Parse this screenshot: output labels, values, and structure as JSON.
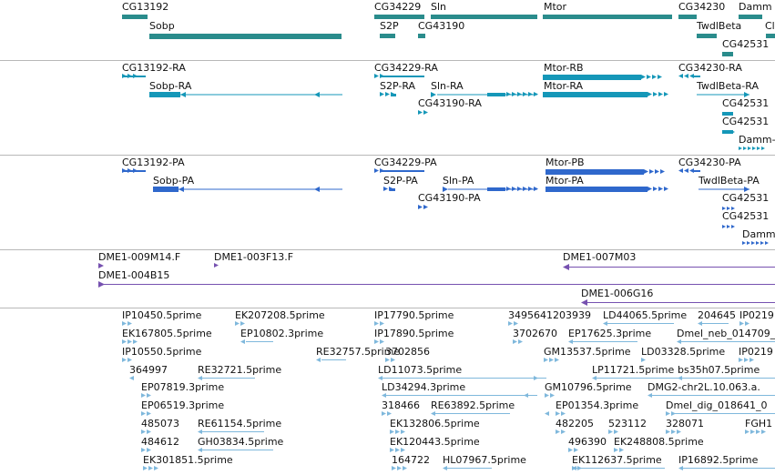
{
  "colors": {
    "gene": "#2a8c8c",
    "transcript_ra": "#1597b8",
    "transcript_pa": "#2f68cc",
    "bac": "#7651b0",
    "est": "#7fb8dc",
    "separator": "#b8b8b8",
    "text": "#111111"
  },
  "tracks": [
    {
      "id": "genes",
      "color": "gene",
      "labels": [
        {
          "text": "CG13192"
        },
        {
          "text": "Sobp"
        },
        {
          "text": "CG34229"
        },
        {
          "text": "Sln"
        },
        {
          "text": "S2P"
        },
        {
          "text": "CG43190"
        },
        {
          "text": "Mtor"
        },
        {
          "text": "CG34230"
        },
        {
          "text": "Damm"
        },
        {
          "text": "Cl"
        },
        {
          "text": "TwdlBeta"
        },
        {
          "text": "CG42531"
        }
      ]
    },
    {
      "id": "transcripts-ra",
      "color": "transcript_ra",
      "labels": [
        {
          "text": "CG13192-RA"
        },
        {
          "text": "Sobp-RA"
        },
        {
          "text": "CG34229-RA"
        },
        {
          "text": "S2P-RA"
        },
        {
          "text": "Sln-RA"
        },
        {
          "text": "CG43190-RA"
        },
        {
          "text": "Mtor-RB"
        },
        {
          "text": "Mtor-RA"
        },
        {
          "text": "CG34230-RA"
        },
        {
          "text": "TwdlBeta-RA"
        },
        {
          "text": "CG42531"
        },
        {
          "text": "CG42531"
        },
        {
          "text": "Damm-"
        }
      ]
    },
    {
      "id": "transcripts-pa",
      "color": "transcript_pa",
      "labels": [
        {
          "text": "CG13192-PA"
        },
        {
          "text": "Sobp-PA"
        },
        {
          "text": "CG34229-PA"
        },
        {
          "text": "S2P-PA"
        },
        {
          "text": "Sln-PA"
        },
        {
          "text": "CG43190-PA"
        },
        {
          "text": "Mtor-PB"
        },
        {
          "text": "Mtor-PA"
        },
        {
          "text": "CG34230-PA"
        },
        {
          "text": "TwdlBeta-PA"
        },
        {
          "text": "CG42531"
        },
        {
          "text": "CG42531"
        },
        {
          "text": "Damm"
        }
      ]
    },
    {
      "id": "bac-clones",
      "color": "bac",
      "labels": [
        {
          "text": "DME1-009M14.F"
        },
        {
          "text": "DME1-003F13.F"
        },
        {
          "text": "DME1-004B15"
        },
        {
          "text": "DME1-007M03"
        },
        {
          "text": "DME1-006G16"
        }
      ]
    },
    {
      "id": "est-reads",
      "color": "est",
      "labels": [
        {
          "text": "IP10450.5prime"
        },
        {
          "text": "EK207208.5prime"
        },
        {
          "text": "EK167805.5prime"
        },
        {
          "text": "EP10802.3prime"
        },
        {
          "text": "IP10550.5prime"
        },
        {
          "text": "RE32757.5prime"
        },
        {
          "text": "364997"
        },
        {
          "text": "RE32721.5prime"
        },
        {
          "text": "EP07819.3prime"
        },
        {
          "text": "EP06519.3prime"
        },
        {
          "text": "485073"
        },
        {
          "text": "RE61154.5prime"
        },
        {
          "text": "484612"
        },
        {
          "text": "GH03834.5prime"
        },
        {
          "text": "EK301851.5prime"
        },
        {
          "text": "IP17790.5prime"
        },
        {
          "text": "IP17890.5prime"
        },
        {
          "text": "3702856"
        },
        {
          "text": "LD11073.5prime"
        },
        {
          "text": "LD34294.3prime"
        },
        {
          "text": "318466"
        },
        {
          "text": "RE63892.5prime"
        },
        {
          "text": "EK132806.5prime"
        },
        {
          "text": "EK120443.5prime"
        },
        {
          "text": "164722"
        },
        {
          "text": "HL07967.5prime"
        },
        {
          "text": "3495641203939"
        },
        {
          "text": "LD44065.5prime"
        },
        {
          "text": "3702670"
        },
        {
          "text": "EP17625.3prime"
        },
        {
          "text": "GM13537.5prime"
        },
        {
          "text": "LD03328.5prime"
        },
        {
          "text": "LP11721.5prime"
        },
        {
          "text": "GM10796.5prime"
        },
        {
          "text": "EP01354.3prime"
        },
        {
          "text": "482205"
        },
        {
          "text": "523112"
        },
        {
          "text": "496390"
        },
        {
          "text": "EK248808.5prime"
        },
        {
          "text": "EK112637.5prime"
        },
        {
          "text": "204645"
        },
        {
          "text": "IP0219"
        },
        {
          "text": "Dmel_neb_014709_0"
        },
        {
          "text": "IP0219"
        },
        {
          "text": "bs35h07.5prime"
        },
        {
          "text": "DMG2-chr2L.10.063.a."
        },
        {
          "text": "Dmel_dig_018641_0"
        },
        {
          "text": "328071"
        },
        {
          "text": "FGH1"
        },
        {
          "text": "IP16892.5prime"
        }
      ]
    }
  ]
}
